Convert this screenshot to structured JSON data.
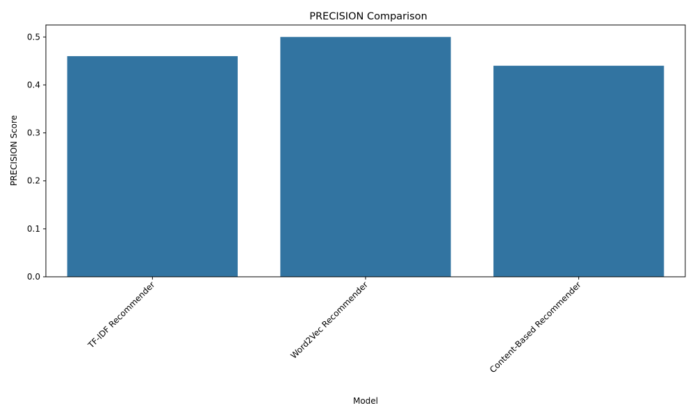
{
  "chart_data": {
    "type": "bar",
    "title": "PRECISION Comparison",
    "xlabel": "Model",
    "ylabel": "PRECISION Score",
    "categories": [
      "TF-IDF Recommender",
      "Word2Vec Recommender",
      "Content-Based Recommender"
    ],
    "values": [
      0.46,
      0.5,
      0.44
    ],
    "ylim": [
      0,
      0.525
    ],
    "yticks": [
      "0.0",
      "0.1",
      "0.2",
      "0.3",
      "0.4",
      "0.5"
    ],
    "bar_color": "#3274a1",
    "grid": false,
    "legend": "none"
  }
}
